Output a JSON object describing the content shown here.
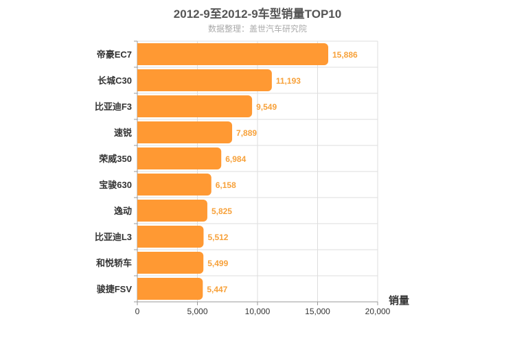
{
  "chart_data": {
    "type": "bar",
    "orientation": "horizontal",
    "title": "2012-9至2012-9车型销量TOP10",
    "subtitle": "数据整理：盖世汽车研究院",
    "xlabel": "销量",
    "categories": [
      "帝豪EC7",
      "长城C30",
      "比亚迪F3",
      "速锐",
      "荣威350",
      "宝骏630",
      "逸动",
      "比亚迪L3",
      "和悦轿车",
      "骏捷FSV"
    ],
    "values": [
      15886,
      11193,
      9549,
      7889,
      6984,
      6158,
      5825,
      5512,
      5499,
      5447
    ],
    "value_labels": [
      "15,886",
      "11,193",
      "9,549",
      "7,889",
      "6,984",
      "6,158",
      "5,825",
      "5,512",
      "5,499",
      "5,447"
    ],
    "xlim": [
      0,
      20000
    ],
    "xticks": [
      0,
      5000,
      10000,
      15000,
      20000
    ],
    "xtick_labels": [
      "0",
      "5,000",
      "10,000",
      "15,000",
      "20,000"
    ],
    "grid": true,
    "bar_color": "#ff9933",
    "label_color": "#f7a13a"
  }
}
